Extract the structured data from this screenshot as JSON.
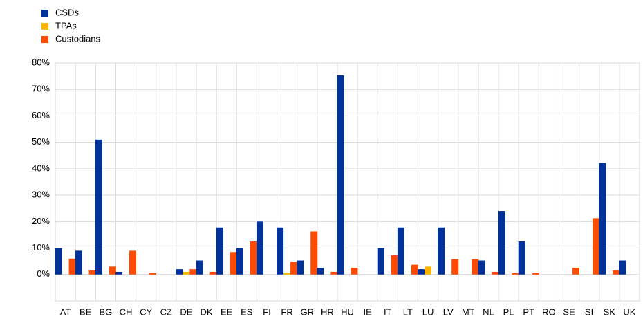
{
  "chart_data": {
    "type": "bar",
    "categories": [
      "AT",
      "BE",
      "BG",
      "CH",
      "CY",
      "CZ",
      "DE",
      "DK",
      "EE",
      "ES",
      "FI",
      "FR",
      "GR",
      "HR",
      "HU",
      "IE",
      "IT",
      "LT",
      "LU",
      "LV",
      "MT",
      "NL",
      "PL",
      "PT",
      "RO",
      "SE",
      "SI",
      "SK",
      "UK"
    ],
    "series": [
      {
        "name": "CSDs",
        "color": "#003299",
        "values": [
          10,
          9,
          51,
          1,
          0,
          0,
          2,
          5.3,
          17.8,
          10,
          20,
          17.8,
          5.3,
          2.5,
          75.3,
          0,
          10,
          17.8,
          2,
          17.8,
          0,
          5.3,
          24,
          12.5,
          0,
          0,
          0,
          42.2,
          5.3
        ]
      },
      {
        "name": "TPAs",
        "color": "#ffb400",
        "values": [
          0,
          0,
          0,
          0,
          0,
          0,
          1,
          0,
          0,
          0,
          0,
          0.5,
          0,
          0,
          0,
          0,
          0,
          0,
          3,
          0,
          0,
          0,
          0,
          0,
          0,
          0,
          0,
          0,
          0
        ]
      },
      {
        "name": "Custodians",
        "color": "#ff4b00",
        "values": [
          6,
          1.5,
          3,
          9,
          0.5,
          0,
          2,
          1,
          8.5,
          12.5,
          0,
          4.8,
          16.3,
          1,
          2.5,
          0,
          7.3,
          3.7,
          0,
          5.8,
          5.8,
          1,
          0.5,
          0.5,
          0,
          2.5,
          21.3,
          1.5,
          0
        ]
      }
    ],
    "ylim": [
      -10,
      80
    ],
    "yticks": [
      {
        "value": 0,
        "label": "0%"
      },
      {
        "value": 10,
        "label": "10%"
      },
      {
        "value": 20,
        "label": "20%"
      },
      {
        "value": 30,
        "label": "30%"
      },
      {
        "value": 40,
        "label": "40%"
      },
      {
        "value": 50,
        "label": "50%"
      },
      {
        "value": 60,
        "label": "60%"
      },
      {
        "value": 70,
        "label": "70%"
      },
      {
        "value": 80,
        "label": "80%"
      }
    ],
    "grid": true,
    "legend": "top-left"
  }
}
